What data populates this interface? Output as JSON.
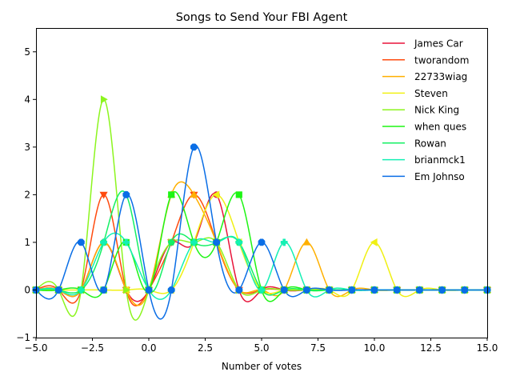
{
  "chart_data": {
    "type": "line",
    "title": "Songs to Send Your FBI Agent",
    "xlabel": "Number of votes",
    "ylabel": "",
    "xlim": [
      -5,
      15
    ],
    "ylim": [
      -1,
      5.5
    ],
    "x_ticks": [
      -5,
      -2.5,
      0,
      2.5,
      5,
      7.5,
      10,
      12.5,
      15
    ],
    "x_tick_labels": [
      "−5.0",
      "−2.5",
      "0.0",
      "2.5",
      "5.0",
      "7.5",
      "10.0",
      "12.5",
      "15.0"
    ],
    "y_ticks": [
      -1,
      0,
      1,
      2,
      3,
      4,
      5
    ],
    "y_tick_labels": [
      "−1",
      "0",
      "1",
      "2",
      "3",
      "4",
      "5"
    ],
    "grid": false,
    "legend_position": "top-right",
    "x": [
      -5,
      -4,
      -3,
      -2,
      -1,
      0,
      1,
      2,
      3,
      4,
      5,
      6,
      7,
      8,
      9,
      10,
      11,
      12,
      13,
      14,
      15
    ],
    "series": [
      {
        "name": "James Car",
        "color": "#e8143a",
        "marker": "circle",
        "values": [
          0,
          0,
          0,
          1,
          0,
          0,
          1,
          1,
          2,
          0,
          0,
          0,
          0,
          0,
          0,
          0,
          0,
          0,
          0,
          0,
          0
        ]
      },
      {
        "name": "tworandom",
        "color": "#ff4b0f",
        "marker": "triangle-down",
        "values": [
          0,
          0,
          0,
          2,
          0,
          0,
          1,
          2,
          1,
          0,
          0,
          0,
          0,
          0,
          0,
          0,
          0,
          0,
          0,
          0,
          0
        ]
      },
      {
        "name": "22733wiag",
        "color": "#ffb000",
        "marker": "triangle-up",
        "values": [
          0,
          0,
          0,
          1,
          0,
          0,
          2,
          2,
          1,
          0,
          0,
          0,
          1,
          0,
          0,
          0,
          0,
          0,
          0,
          0,
          0
        ]
      },
      {
        "name": "Steven",
        "color": "#f0f014",
        "marker": "triangle-left",
        "values": [
          0,
          0,
          0,
          0,
          0,
          0,
          0,
          1,
          2,
          1,
          0,
          0,
          0,
          0,
          0,
          1,
          0,
          0,
          0,
          0,
          0
        ]
      },
      {
        "name": "Nick King",
        "color": "#8cf51e",
        "marker": "triangle-right",
        "values": [
          0,
          0,
          0,
          4,
          0,
          0,
          1,
          1,
          1,
          0,
          0,
          0,
          0,
          0,
          0,
          0,
          0,
          0,
          0,
          0,
          0
        ]
      },
      {
        "name": "when ques",
        "color": "#1ef514",
        "marker": "square",
        "values": [
          0,
          0,
          0,
          0,
          1,
          0,
          2,
          1,
          1,
          2,
          0,
          0,
          0,
          0,
          0,
          0,
          0,
          0,
          0,
          0,
          0
        ]
      },
      {
        "name": "Rowan",
        "color": "#14f064",
        "marker": "pentagon",
        "values": [
          0,
          0,
          0,
          1,
          2,
          0,
          1,
          1,
          1,
          1,
          0,
          0,
          0,
          0,
          0,
          0,
          0,
          0,
          0,
          0,
          0
        ]
      },
      {
        "name": "brianmck1",
        "color": "#14f0b4",
        "marker": "plus",
        "values": [
          0,
          0,
          0,
          1,
          1,
          0,
          0,
          1,
          1,
          1,
          0,
          1,
          0,
          0,
          0,
          0,
          0,
          0,
          0,
          0,
          0
        ]
      },
      {
        "name": "Em Johnso",
        "color": "#0a6ee6",
        "marker": "octagon",
        "values": [
          0,
          0,
          1,
          0,
          2,
          0,
          0,
          3,
          1,
          0,
          1,
          0,
          0,
          0,
          0,
          0,
          0,
          0,
          0,
          0,
          0
        ]
      }
    ]
  }
}
